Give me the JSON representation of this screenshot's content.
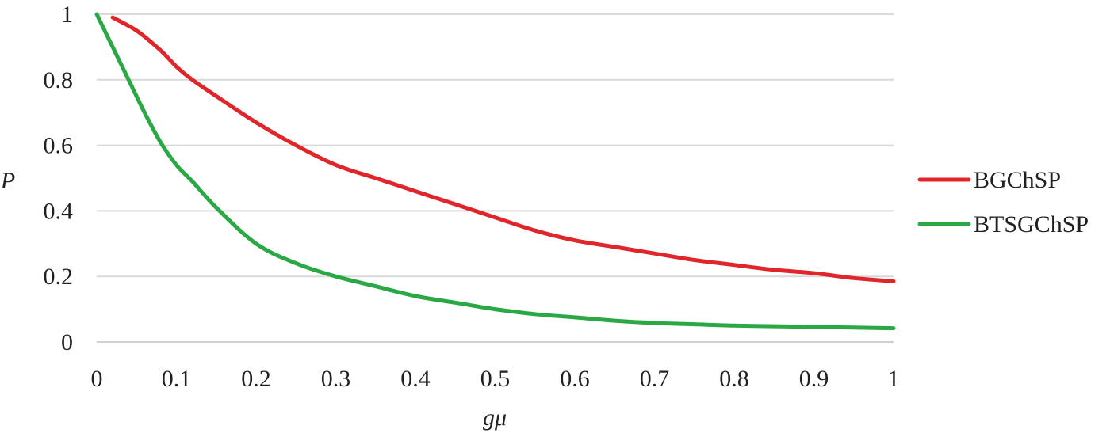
{
  "chart_data": {
    "type": "line",
    "xlabel": "gμ",
    "ylabel": "P",
    "xlim": [
      0,
      1
    ],
    "ylim": [
      0,
      1
    ],
    "x_ticks": [
      "0",
      "0.1",
      "0.2",
      "0.3",
      "0.4",
      "0.5",
      "0.6",
      "0.7",
      "0.8",
      "0.9",
      "1"
    ],
    "y_ticks": [
      "0",
      "0.2",
      "0.4",
      "0.6",
      "0.8",
      "1"
    ],
    "grid": "horizontal",
    "legend_position": "right",
    "series": [
      {
        "name": "BGChSP",
        "color": "#e0262b",
        "x": [
          0.02,
          0.05,
          0.08,
          0.1,
          0.12,
          0.15,
          0.2,
          0.25,
          0.3,
          0.35,
          0.4,
          0.45,
          0.5,
          0.55,
          0.6,
          0.65,
          0.7,
          0.75,
          0.8,
          0.85,
          0.9,
          0.95,
          1.0
        ],
        "y": [
          0.99,
          0.95,
          0.89,
          0.84,
          0.8,
          0.75,
          0.67,
          0.6,
          0.54,
          0.5,
          0.46,
          0.42,
          0.38,
          0.34,
          0.31,
          0.29,
          0.27,
          0.25,
          0.235,
          0.22,
          0.21,
          0.195,
          0.185
        ]
      },
      {
        "name": "BTSGChSP",
        "color": "#2aa844",
        "x": [
          0.0,
          0.02,
          0.04,
          0.06,
          0.08,
          0.1,
          0.12,
          0.15,
          0.2,
          0.25,
          0.3,
          0.35,
          0.4,
          0.45,
          0.5,
          0.55,
          0.6,
          0.65,
          0.7,
          0.75,
          0.8,
          0.85,
          0.9,
          0.95,
          1.0
        ],
        "y": [
          1.0,
          0.9,
          0.8,
          0.7,
          0.61,
          0.54,
          0.49,
          0.41,
          0.3,
          0.24,
          0.2,
          0.17,
          0.14,
          0.12,
          0.1,
          0.085,
          0.075,
          0.065,
          0.058,
          0.054,
          0.05,
          0.048,
          0.046,
          0.044,
          0.042
        ]
      }
    ]
  }
}
